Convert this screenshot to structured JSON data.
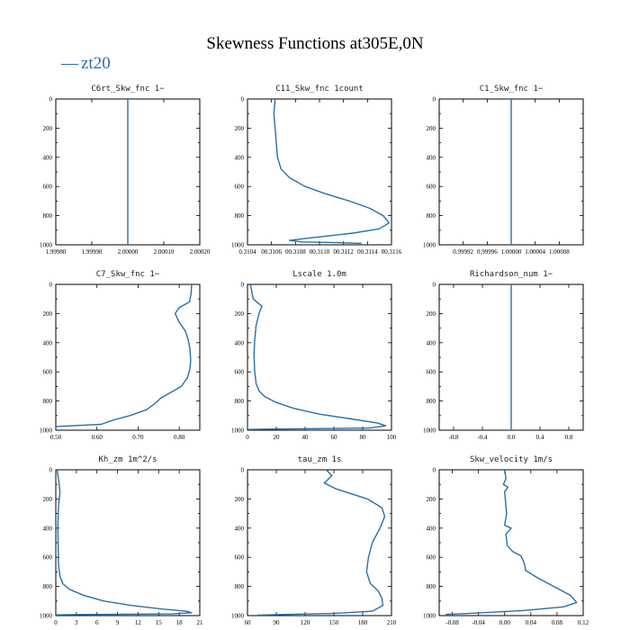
{
  "title": "Skewness Functions at305E,0N",
  "legend": {
    "symbol": "—",
    "label": "zt20",
    "color": "#2a6fa8"
  },
  "chart_data": [
    {
      "type": "line",
      "title": "C6rt_Skw_fnc  1−",
      "xlim": [
        1.9998,
        2.0002
      ],
      "xticks": [
        1.9998,
        1.9999,
        2.0,
        2.0001,
        2.0002
      ],
      "xticklabels": [
        "1.99980",
        "1.99990",
        "2.00000",
        "2.00010",
        "2.00020"
      ],
      "ylim": [
        0,
        1000
      ],
      "yticks": [
        0,
        200,
        400,
        600,
        800,
        1000
      ],
      "series": [
        {
          "name": "zt20",
          "x": [
            2.0,
            2.0
          ],
          "y": [
            0,
            1000
          ]
        }
      ]
    },
    {
      "type": "line",
      "title": "C11_Skw_fnc  1count",
      "xlim": [
        0.3104,
        0.3116
      ],
      "xticks": [
        0.3104,
        0.3106,
        0.3108,
        0.311,
        0.3112,
        0.3114,
        0.3116
      ],
      "xticklabels": [
        "0.3104",
        "00.3106",
        "00.3108",
        "00.3110",
        "00.3112",
        "00.3114",
        "00.3116"
      ],
      "ylim": [
        0,
        1000
      ],
      "yticks": [
        0,
        200,
        400,
        600,
        800,
        1000
      ],
      "series": [
        {
          "name": "zt20",
          "x": [
            0.31063,
            0.31062,
            0.31063,
            0.31064,
            0.31065,
            0.31068,
            0.31075,
            0.31088,
            0.31105,
            0.31125,
            0.31142,
            0.31153,
            0.31158,
            0.3115,
            0.31128,
            0.31095,
            0.31075,
            0.31085,
            0.31115,
            0.31135
          ],
          "y": [
            0,
            100,
            200,
            300,
            400,
            480,
            540,
            600,
            650,
            700,
            750,
            800,
            850,
            890,
            920,
            950,
            970,
            980,
            985,
            990
          ]
        }
      ]
    },
    {
      "type": "line",
      "title": "C1_Skw_fnc  1−",
      "xlim": [
        0.99988,
        1.00012
      ],
      "xticks": [
        0.99992,
        0.99996,
        1.0,
        1.00004,
        1.00008
      ],
      "xticklabels": [
        "0.99992",
        "0.99996",
        "1.00000",
        "1.00004",
        "1.00008"
      ],
      "ylim": [
        0,
        1000
      ],
      "yticks": [
        0,
        200,
        400,
        600,
        800,
        1000
      ],
      "series": [
        {
          "name": "zt20",
          "x": [
            1.0,
            1.0
          ],
          "y": [
            0,
            1000
          ]
        }
      ]
    },
    {
      "type": "line",
      "title": "C7_Skw_fnc  1−",
      "xlim": [
        0.5,
        0.85
      ],
      "xticks": [
        0.5,
        0.6,
        0.7,
        0.8
      ],
      "xticklabels": [
        "0.50",
        "0.60",
        "0.70",
        "0.80"
      ],
      "ylim": [
        0,
        1000
      ],
      "yticks": [
        0,
        200,
        400,
        600,
        800,
        1000
      ],
      "series": [
        {
          "name": "zt20",
          "x": [
            0.83,
            0.829,
            0.825,
            0.8,
            0.79,
            0.8,
            0.815,
            0.822,
            0.826,
            0.828,
            0.826,
            0.82,
            0.805,
            0.78,
            0.755,
            0.74,
            0.72,
            0.68,
            0.64,
            0.62,
            0.61,
            0.55,
            0.5
          ],
          "y": [
            0,
            60,
            120,
            160,
            200,
            260,
            320,
            380,
            440,
            520,
            580,
            640,
            700,
            740,
            780,
            820,
            860,
            900,
            930,
            950,
            960,
            968,
            975
          ]
        }
      ]
    },
    {
      "type": "line",
      "title": "Lscale  1.0m",
      "xlim": [
        0,
        100
      ],
      "xticks": [
        0,
        20,
        40,
        60,
        80,
        100
      ],
      "xticklabels": [
        "0",
        "20",
        "40",
        "60",
        "80",
        "100"
      ],
      "ylim": [
        0,
        1000
      ],
      "yticks": [
        0,
        200,
        400,
        600,
        800,
        1000
      ],
      "series": [
        {
          "name": "zt20",
          "x": [
            2,
            4,
            10,
            8,
            6,
            5,
            4.5,
            5,
            6,
            8,
            12,
            20,
            32,
            50,
            70,
            90,
            96,
            85,
            20,
            0
          ],
          "y": [
            0,
            100,
            150,
            200,
            280,
            380,
            480,
            600,
            680,
            730,
            770,
            810,
            850,
            890,
            920,
            950,
            970,
            985,
            992,
            995
          ]
        }
      ]
    },
    {
      "type": "line",
      "title": "Richardson_num  1−",
      "xlim": [
        -1,
        1
      ],
      "xticks": [
        -0.8,
        -0.4,
        0.0,
        0.4,
        0.8
      ],
      "xticklabels": [
        "-0.8",
        "-0.4",
        "0.0",
        "0.4",
        "0.8"
      ],
      "ylim": [
        0,
        1000
      ],
      "yticks": [
        0,
        200,
        400,
        600,
        800,
        1000
      ],
      "series": [
        {
          "name": "zt20",
          "x": [
            0.0,
            0.0
          ],
          "y": [
            0,
            1000
          ]
        }
      ]
    },
    {
      "type": "line",
      "title": "Kh_zm  1m^2/s",
      "xlim": [
        0,
        21
      ],
      "xticks": [
        0,
        3,
        6,
        9,
        12,
        15,
        18,
        21
      ],
      "xticklabels": [
        "0",
        "3",
        "6",
        "9",
        "12",
        "15",
        "18",
        "21"
      ],
      "ylim": [
        0,
        1000
      ],
      "yticks": [
        0,
        200,
        400,
        600,
        800,
        1000
      ],
      "series": [
        {
          "name": "zt20",
          "x": [
            0.2,
            0.5,
            0.6,
            0.4,
            0.3,
            0.35,
            0.4,
            0.6,
            1.0,
            2.0,
            4.0,
            7.0,
            11.0,
            15.5,
            19.0,
            19.8,
            17.0,
            5.0,
            0.0
          ],
          "y": [
            0,
            100,
            160,
            250,
            400,
            550,
            650,
            730,
            780,
            820,
            860,
            900,
            930,
            955,
            970,
            980,
            988,
            992,
            995
          ]
        }
      ]
    },
    {
      "type": "line",
      "title": "tau_zm  1s",
      "xlim": [
        60,
        210
      ],
      "xticks": [
        60,
        90,
        120,
        150,
        180,
        210
      ],
      "xticklabels": [
        "60",
        "90",
        "120",
        "150",
        "180",
        "210"
      ],
      "ylim": [
        0,
        1000
      ],
      "yticks": [
        0,
        200,
        400,
        600,
        800,
        1000
      ],
      "series": [
        {
          "name": "zt20",
          "x": [
            142,
            148,
            140,
            152,
            185,
            200,
            203,
            198,
            190,
            186,
            184,
            188,
            196,
            200,
            201,
            190,
            150,
            100,
            70
          ],
          "y": [
            0,
            40,
            90,
            130,
            200,
            260,
            320,
            400,
            500,
            600,
            700,
            780,
            830,
            880,
            930,
            970,
            985,
            992,
            996
          ]
        }
      ]
    },
    {
      "type": "line",
      "title": "Skw_velocity  1m/s",
      "xlim": [
        -0.1,
        0.12
      ],
      "xticks": [
        -0.08,
        -0.04,
        0.0,
        0.04,
        0.08,
        0.12
      ],
      "xticklabels": [
        "-0.08",
        "-0.04",
        "0.00",
        "0.04",
        "0.08",
        "0.12"
      ],
      "ylim": [
        0,
        1000
      ],
      "yticks": [
        0,
        200,
        400,
        600,
        800,
        1000
      ],
      "series": [
        {
          "name": "zt20",
          "x": [
            0.0,
            0.002,
            -0.002,
            0.005,
            0.0,
            0.002,
            0.003,
            0.0,
            0.01,
            0.002,
            0.004,
            0.012,
            0.025,
            0.03,
            0.032,
            0.05,
            0.075,
            0.1,
            0.11,
            0.09,
            0.03,
            -0.04,
            -0.09
          ],
          "y": [
            0,
            60,
            100,
            120,
            150,
            250,
            300,
            380,
            400,
            440,
            520,
            560,
            590,
            640,
            690,
            740,
            800,
            860,
            910,
            940,
            965,
            982,
            992
          ]
        }
      ]
    }
  ]
}
